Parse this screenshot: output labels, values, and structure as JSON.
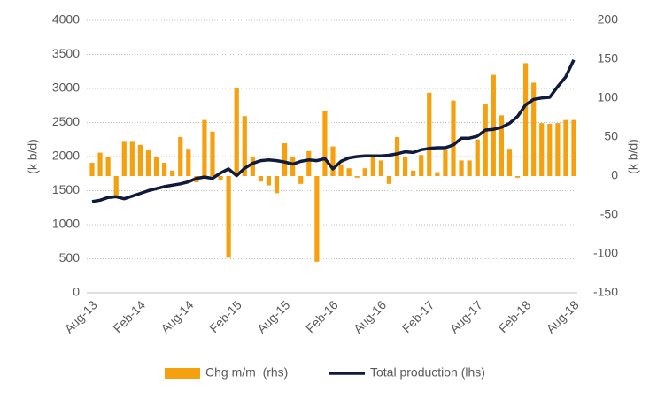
{
  "chart_data": {
    "type": "bar_line",
    "categories": [
      "Aug-13",
      null,
      null,
      null,
      null,
      null,
      "Feb-14",
      null,
      null,
      null,
      null,
      null,
      "Aug-14",
      null,
      null,
      null,
      null,
      null,
      "Feb-15",
      null,
      null,
      null,
      null,
      null,
      "Aug-15",
      null,
      null,
      null,
      null,
      null,
      "Feb-16",
      null,
      null,
      null,
      null,
      null,
      "Aug-16",
      null,
      null,
      null,
      null,
      null,
      "Feb-17",
      null,
      null,
      null,
      null,
      null,
      "Aug-17",
      null,
      null,
      null,
      null,
      null,
      "Feb-18",
      null,
      null,
      null,
      null,
      null,
      "Aug-18"
    ],
    "series": [
      {
        "name": "Chg m/m  (rhs)",
        "color": "#f5a00f",
        "axis": "y2",
        "type": "bar",
        "values": [
          17,
          30,
          25,
          -25,
          45,
          45,
          40,
          33,
          25,
          17,
          7,
          50,
          35,
          -8,
          72,
          57,
          -5,
          -105,
          113,
          77,
          25,
          -7,
          -12,
          -22,
          42,
          25,
          -10,
          32,
          -110,
          83,
          38,
          15,
          10,
          -2,
          10,
          25,
          20,
          -10,
          50,
          25,
          7,
          27,
          107,
          5,
          33,
          97,
          20,
          20,
          47,
          92,
          130,
          78,
          35,
          -2,
          145,
          120,
          68,
          67,
          68,
          72,
          72
        ]
      },
      {
        "name": "Total production (lhs)",
        "color": "#0f1a3c",
        "type": "line",
        "values": [
          1340,
          1360,
          1400,
          1410,
          1380,
          1420,
          1460,
          1500,
          1530,
          1560,
          1580,
          1600,
          1630,
          1680,
          1700,
          1680,
          1760,
          1820,
          1720,
          1830,
          1900,
          1940,
          1950,
          1940,
          1920,
          1890,
          1930,
          1950,
          1940,
          1970,
          1820,
          1930,
          1980,
          2000,
          2010,
          2010,
          2010,
          2020,
          2040,
          2070,
          2060,
          2100,
          2120,
          2130,
          2130,
          2170,
          2270,
          2270,
          2300,
          2390,
          2400,
          2430,
          2490,
          2590,
          2760,
          2840,
          2860,
          2870,
          3030,
          3170,
          3420
        ]
      }
    ],
    "ylabel": "(k b/d)",
    "y2label": "(k b/d)",
    "ylim": [
      0,
      4000
    ],
    "yticks": [
      0,
      500,
      1000,
      1500,
      2000,
      2500,
      3000,
      3500,
      4000
    ],
    "y2lim": [
      -150,
      200
    ],
    "y2ticks": [
      -150,
      -100,
      -50,
      0,
      50,
      100,
      150,
      200
    ],
    "grid": true,
    "legend": "bottom"
  }
}
